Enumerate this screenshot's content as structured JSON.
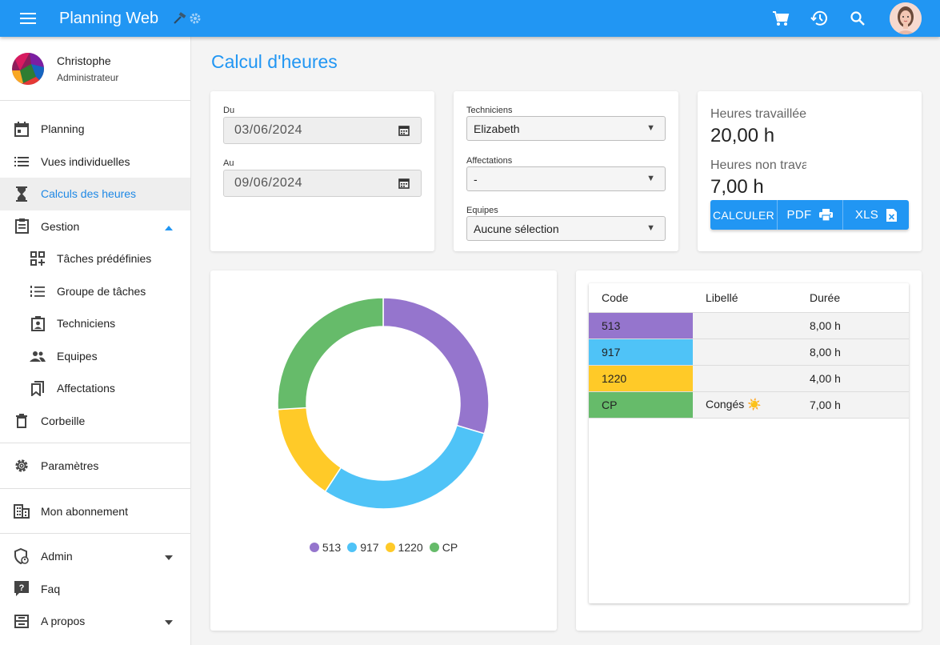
{
  "header": {
    "title": "Planning Web"
  },
  "user": {
    "name": "Christophe",
    "role": "Administrateur"
  },
  "sidebar": {
    "items": [
      {
        "label": "Planning"
      },
      {
        "label": "Vues individuelles"
      },
      {
        "label": "Calculs des heures"
      },
      {
        "label": "Gestion"
      },
      {
        "label": "Tâches prédéfinies"
      },
      {
        "label": "Groupe de tâches"
      },
      {
        "label": "Techniciens"
      },
      {
        "label": "Equipes"
      },
      {
        "label": "Affectations"
      },
      {
        "label": "Corbeille"
      },
      {
        "label": "Paramètres"
      },
      {
        "label": "Mon abonnement"
      },
      {
        "label": "Admin"
      },
      {
        "label": "Faq"
      },
      {
        "label": "A propos"
      }
    ]
  },
  "page": {
    "title": "Calcul d'heures"
  },
  "dates": {
    "from_label": "Du",
    "from_value": "03/06/2024",
    "to_label": "Au",
    "to_value": "09/06/2024"
  },
  "filters": {
    "techniciens_label": "Techniciens",
    "techniciens_value": "Elizabeth",
    "affectations_label": "Affectations",
    "affectations_value": "-",
    "equipes_label": "Equipes",
    "equipes_value": "Aucune sélection"
  },
  "stats": {
    "worked_label": "Heures travaillées",
    "worked_value": "20,00 h",
    "not_worked_label": "Heures non travaillées",
    "not_worked_value": "7,00 h"
  },
  "actions": {
    "calculate": "CALCULER",
    "pdf": "PDF",
    "xls": "XLS"
  },
  "chart_data": {
    "type": "pie",
    "categories": [
      "513",
      "917",
      "1220",
      "CP"
    ],
    "values": [
      8,
      8,
      4,
      7
    ],
    "colors": [
      "#9575cd",
      "#4fc3f7",
      "#ffca28",
      "#66bb6a"
    ],
    "legend": "bottom"
  },
  "table": {
    "headers": [
      "Code",
      "Libellé",
      "Durée"
    ],
    "rows": [
      {
        "code": "513",
        "libelle": "",
        "duree": "8,00 h",
        "color": "#9575cd"
      },
      {
        "code": "917",
        "libelle": "",
        "duree": "8,00 h",
        "color": "#4fc3f7"
      },
      {
        "code": "1220",
        "libelle": "",
        "duree": "4,00 h",
        "color": "#ffca28"
      },
      {
        "code": "CP",
        "libelle": "Congés ☀️",
        "duree": "7,00 h",
        "color": "#66bb6a"
      }
    ]
  }
}
